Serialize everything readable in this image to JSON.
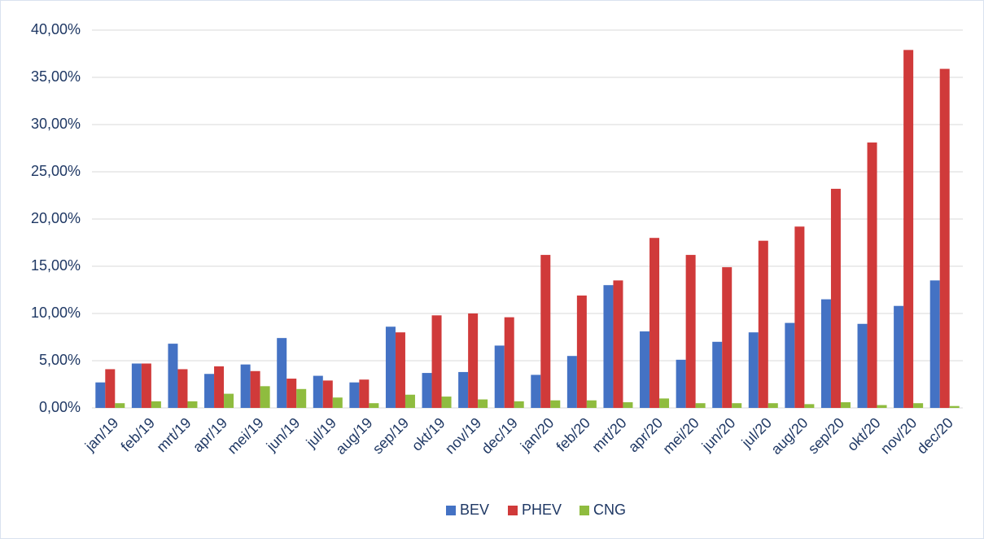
{
  "chart_data": {
    "type": "bar",
    "categories": [
      "jan/19",
      "feb/19",
      "mrt/19",
      "apr/19",
      "mei/19",
      "jun/19",
      "jul/19",
      "aug/19",
      "sep/19",
      "okt/19",
      "nov/19",
      "dec/19",
      "jan/20",
      "feb/20",
      "mrt/20",
      "apr/20",
      "mei/20",
      "jun/20",
      "jul/20",
      "aug/20",
      "sep/20",
      "okt/20",
      "nov/20",
      "dec/20"
    ],
    "series": [
      {
        "name": "BEV",
        "color": "#4472c4",
        "values": [
          2.7,
          4.7,
          6.8,
          3.6,
          4.6,
          7.4,
          3.4,
          2.7,
          8.6,
          3.7,
          3.8,
          6.6,
          3.5,
          5.5,
          13.0,
          8.1,
          5.1,
          7.0,
          8.0,
          9.0,
          11.5,
          8.9,
          10.8,
          13.5
        ]
      },
      {
        "name": "PHEV",
        "color": "#d03a3a",
        "values": [
          4.1,
          4.7,
          4.1,
          4.4,
          3.9,
          3.1,
          2.9,
          3.0,
          8.0,
          9.8,
          10.0,
          9.6,
          16.2,
          11.9,
          13.5,
          18.0,
          16.2,
          14.9,
          17.7,
          19.2,
          23.2,
          28.1,
          37.9,
          35.9
        ]
      },
      {
        "name": "CNG",
        "color": "#8fbc3f",
        "values": [
          0.5,
          0.7,
          0.7,
          1.5,
          2.3,
          2.0,
          1.1,
          0.5,
          1.4,
          1.2,
          0.9,
          0.7,
          0.8,
          0.8,
          0.6,
          1.0,
          0.5,
          0.5,
          0.5,
          0.4,
          0.6,
          0.3,
          0.5,
          0.2
        ]
      }
    ],
    "ylim": [
      0,
      40
    ],
    "yticks": [
      {
        "value": 0,
        "label": "0,00%"
      },
      {
        "value": 5,
        "label": "5,00%"
      },
      {
        "value": 10,
        "label": "10,00%"
      },
      {
        "value": 15,
        "label": "15,00%"
      },
      {
        "value": 20,
        "label": "20,00%"
      },
      {
        "value": 25,
        "label": "25,00%"
      },
      {
        "value": 30,
        "label": "30,00%"
      },
      {
        "value": 35,
        "label": "35,00%"
      },
      {
        "value": 40,
        "label": "40,00%"
      }
    ],
    "grid": true,
    "legend": "bottom"
  }
}
